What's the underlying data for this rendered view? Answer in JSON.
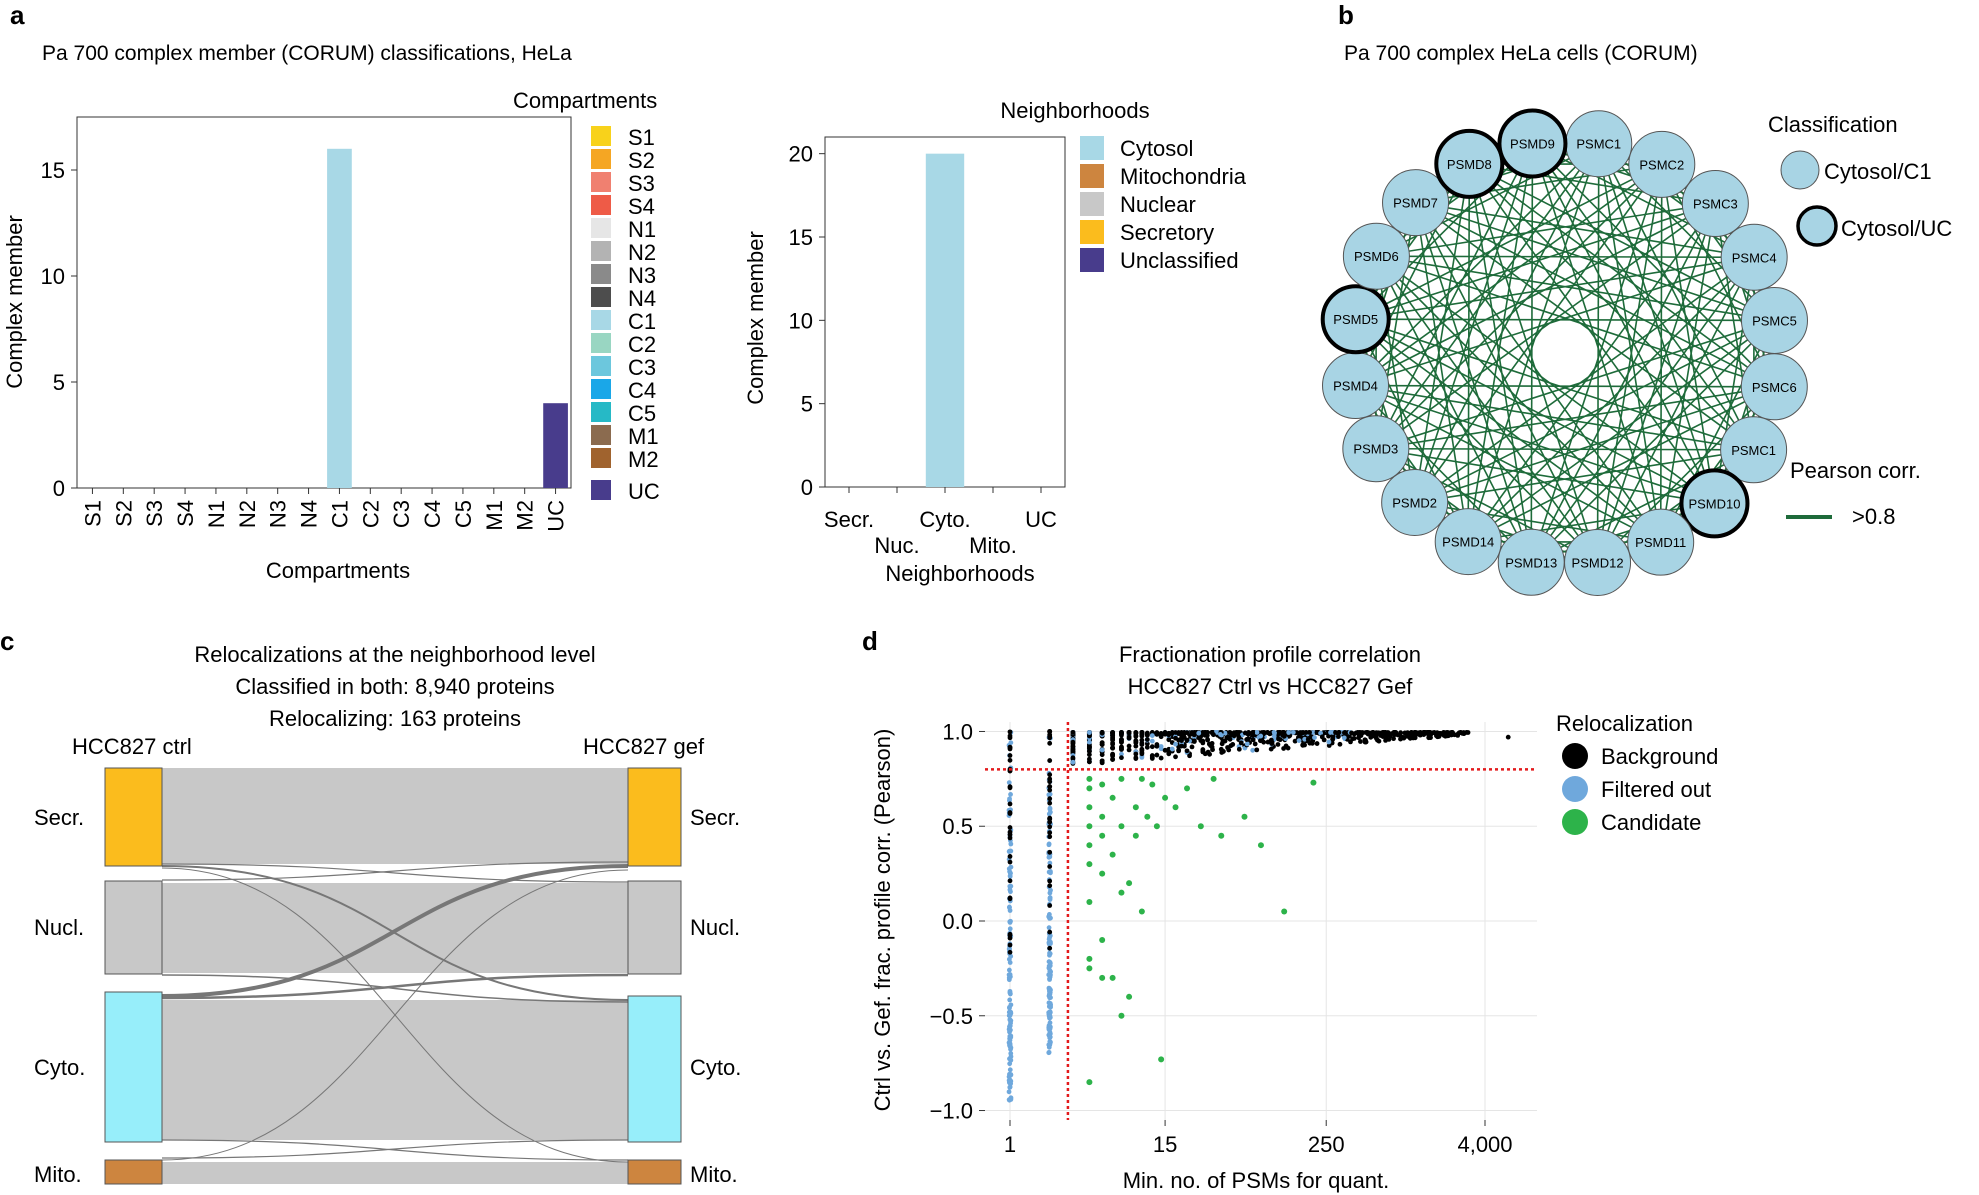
{
  "panels": {
    "a": {
      "letter": "a",
      "title": "Pa 700 complex member (CORUM) classifications, HeLa"
    },
    "b": {
      "letter": "b",
      "title": "Pa 700 complex HeLa cells (CORUM)"
    },
    "c": {
      "letter": "c"
    },
    "d": {
      "letter": "d"
    }
  },
  "colors": {
    "S1": "#F8D21B",
    "S2": "#F5A623",
    "S3": "#F08070",
    "S4": "#EE5B47",
    "N1": "#E6E6E6",
    "N2": "#B3B3B3",
    "N3": "#8A8A8A",
    "N4": "#4D4D4D",
    "C1": "#A8D8E6",
    "C2": "#99D6C2",
    "C3": "#6CC7DD",
    "C4": "#1AA7E8",
    "C5": "#26B9C6",
    "M1": "#8B6B4F",
    "M2": "#A0632E",
    "UC": "#483C8C",
    "Cytosol": "#A8D8E6",
    "Mitochondria": "#CD853F",
    "Nuclear": "#C8C8C8",
    "Secretory": "#FBBC1D",
    "Unclassified": "#483C8C",
    "node": "#A8D4E4",
    "edge": "#1E6B3A",
    "sankey_secr": "#FBBC1D",
    "sankey_nucl": "#C8C8C8",
    "sankey_cyto": "#97EEFA",
    "sankey_mito": "#CD853F",
    "sankey_flow": "#C8C8C8",
    "background": "#000000",
    "filtered": "#6FA8DC",
    "candidate": "#2DB34A",
    "threshold": "#E31A1C"
  },
  "chart_data": [
    {
      "id": "a1",
      "type": "bar",
      "title": "",
      "xlabel": "Compartments",
      "ylabel": "Complex member",
      "categories": [
        "S1",
        "S2",
        "S3",
        "S4",
        "N1",
        "N2",
        "N3",
        "N4",
        "C1",
        "C2",
        "C3",
        "C4",
        "C5",
        "M1",
        "M2",
        "UC"
      ],
      "values": [
        0,
        0,
        0,
        0,
        0,
        0,
        0,
        0,
        16,
        0,
        0,
        0,
        0,
        0,
        0,
        4
      ],
      "ylim": [
        0,
        17.5
      ],
      "yticks": [
        0,
        5,
        10,
        15
      ],
      "legend_title": "Compartments",
      "legend": [
        "S1",
        "S2",
        "S3",
        "S4",
        "N1",
        "N2",
        "N3",
        "N4",
        "C1",
        "C2",
        "C3",
        "C4",
        "C5",
        "M1",
        "M2",
        "UC"
      ]
    },
    {
      "id": "a2",
      "type": "bar",
      "title": "",
      "xlabel": "Neighborhoods",
      "ylabel": "Complex member",
      "categories": [
        "Secr.",
        "Nuc.",
        "Cyto.",
        "Mito.",
        "UC"
      ],
      "values": [
        0,
        0,
        20,
        0,
        0
      ],
      "ylim": [
        0,
        21
      ],
      "yticks": [
        0,
        5,
        10,
        15,
        20
      ],
      "legend_title": "Neighborhoods",
      "legend": [
        "Cytosol",
        "Mitochondria",
        "Nuclear",
        "Secretory",
        "Unclassified"
      ]
    },
    {
      "id": "b",
      "type": "network",
      "nodes": [
        "PSMC1",
        "PSMC2",
        "PSMC3",
        "PSMC4",
        "PSMC5",
        "PSMC6",
        "PSMC1",
        "PSMD10",
        "PSMD11",
        "PSMD12",
        "PSMD13",
        "PSMD14",
        "PSMD2",
        "PSMD3",
        "PSMD4",
        "PSMD5",
        "PSMD6",
        "PSMD7",
        "PSMD8",
        "PSMD9"
      ],
      "uc_nodes": [
        "PSMD9",
        "PSMD8",
        "PSMD5",
        "PSMD10"
      ],
      "legend_title": "Classification",
      "legend": [
        "Cytosol/C1",
        "Cytosol/UC"
      ],
      "edge_legend_title": "Pearson corr.",
      "edge_legend": ">0.8"
    },
    {
      "id": "c",
      "type": "sankey",
      "title_lines": [
        "Relocalizations at the neighborhood level",
        "Classified in both: 8,940 proteins",
        "Relocalizing: 163 proteins"
      ],
      "left_label": "HCC827 ctrl",
      "right_label": "HCC827 gef",
      "nodes": [
        "Secr.",
        "Nucl.",
        "Cyto.",
        "Mito."
      ]
    },
    {
      "id": "d",
      "type": "scatter",
      "title_lines": [
        "Fractionation profile correlation",
        "HCC827 Ctrl vs HCC827 Gef"
      ],
      "xlabel": "Min. no. of PSMs for quant.",
      "ylabel": "Ctrl vs. Gef. frac. profile corr. (Pearson)",
      "xtick_labels": [
        "1",
        "15",
        "250",
        "4,000"
      ],
      "yticks": [
        -1.0,
        -0.5,
        0.0,
        0.5,
        1.0
      ],
      "ytick_labels": [
        "−1.0",
        "−0.5",
        "0.0",
        "0.5",
        "1.0"
      ],
      "ylim": [
        -1.05,
        1.05
      ],
      "x_threshold": 3,
      "y_threshold": 0.8,
      "legend_title": "Relocalization",
      "legend": [
        "Background",
        "Filtered out",
        "Candidate"
      ],
      "candidate_points": [
        [
          4,
          0.75
        ],
        [
          4,
          0.7
        ],
        [
          4,
          0.6
        ],
        [
          4,
          0.5
        ],
        [
          4,
          0.4
        ],
        [
          4,
          0.3
        ],
        [
          4,
          0.1
        ],
        [
          4,
          -0.2
        ],
        [
          4,
          -0.25
        ],
        [
          4,
          -0.85
        ],
        [
          5,
          0.72
        ],
        [
          5,
          0.55
        ],
        [
          5,
          0.45
        ],
        [
          5,
          0.25
        ],
        [
          5,
          -0.1
        ],
        [
          5,
          -0.3
        ],
        [
          6,
          0.65
        ],
        [
          6,
          0.35
        ],
        [
          6,
          -0.3
        ],
        [
          7,
          0.75
        ],
        [
          7,
          0.5
        ],
        [
          7,
          0.15
        ],
        [
          7,
          -0.5
        ],
        [
          8,
          0.2
        ],
        [
          8,
          -0.4
        ],
        [
          9,
          0.6
        ],
        [
          9,
          0.45
        ],
        [
          10,
          0.75
        ],
        [
          10,
          0.05
        ],
        [
          11,
          0.55
        ],
        [
          12,
          0.72
        ],
        [
          13,
          0.5
        ],
        [
          14,
          -0.73
        ],
        [
          15,
          0.65
        ],
        [
          18,
          0.6
        ],
        [
          22,
          0.7
        ],
        [
          28,
          0.5
        ],
        [
          35,
          0.75
        ],
        [
          40,
          0.45
        ],
        [
          60,
          0.55
        ],
        [
          80,
          0.4
        ],
        [
          120,
          0.05
        ],
        [
          200,
          0.73
        ]
      ]
    }
  ]
}
